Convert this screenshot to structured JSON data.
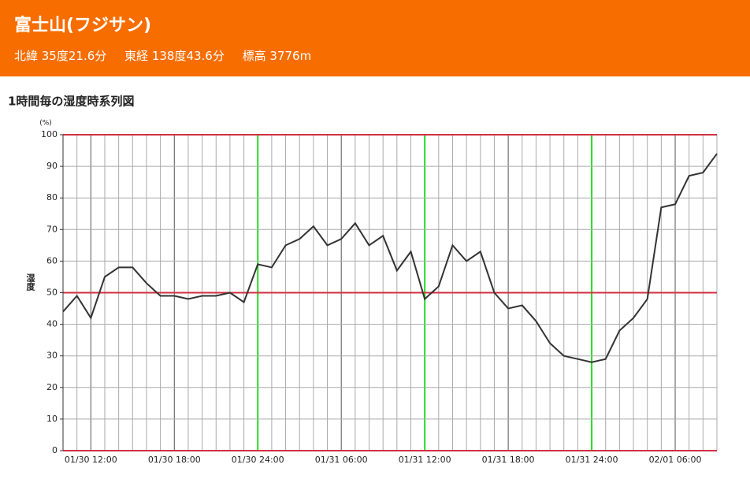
{
  "header": {
    "title": "富士山(フジサン)",
    "location": [
      "北緯 35度21.6分",
      "東経 138度43.6分",
      "標高 3776m"
    ]
  },
  "chart_data": {
    "type": "line",
    "title": "1時間毎の湿度時系列図",
    "y_unit": "(%)",
    "y_label": "湿度",
    "categories": [
      null,
      null,
      "01/30 12:00",
      null,
      null,
      null,
      null,
      null,
      "01/30 18:00",
      null,
      null,
      null,
      null,
      null,
      "01/30 24:00",
      null,
      null,
      null,
      null,
      null,
      "01/31 06:00",
      null,
      null,
      null,
      null,
      null,
      "01/31 12:00",
      null,
      null,
      null,
      null,
      null,
      "01/31 18:00",
      null,
      null,
      null,
      null,
      null,
      "01/31 24:00",
      null,
      null,
      null,
      null,
      null,
      "02/01 06:00",
      null,
      null,
      null
    ],
    "values": [
      44,
      49,
      42,
      55,
      58,
      58,
      53,
      49,
      49,
      48,
      49,
      49,
      50,
      47,
      59,
      58,
      65,
      67,
      71,
      65,
      67,
      72,
      65,
      68,
      57,
      63,
      48,
      52,
      65,
      60,
      63,
      50,
      45,
      46,
      41,
      34,
      30,
      29,
      28,
      29,
      38,
      42,
      48,
      77,
      78,
      87,
      88,
      94
    ],
    "color": "#333333",
    "ylim": [
      0,
      100
    ],
    "yticks": [
      0,
      10,
      20,
      30,
      40,
      50,
      60,
      70,
      80,
      90,
      100
    ],
    "grid": true
  }
}
